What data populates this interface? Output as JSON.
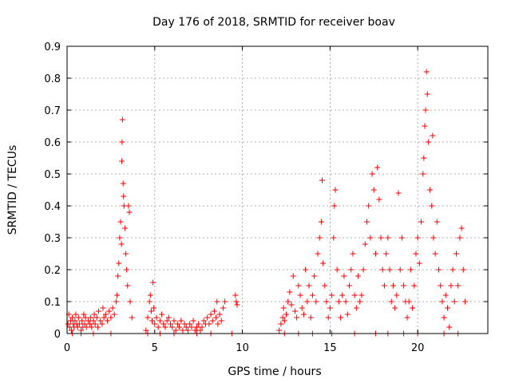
{
  "chart_data": {
    "type": "scatter",
    "title": "Day 176 of 2018, SRMTID for receiver boav",
    "xlabel": "GPS time / hours",
    "ylabel": "SRMTID / TECUs",
    "xlim": [
      0,
      24
    ],
    "ylim": [
      0,
      0.9
    ],
    "xticks": [
      0,
      5,
      10,
      15,
      20
    ],
    "yticks": [
      0,
      0.1,
      0.2,
      0.3,
      0.4,
      0.5,
      0.6,
      0.7,
      0.8,
      0.9
    ],
    "xtick_labels": [
      "0",
      "5",
      "10",
      "15",
      "20"
    ],
    "ytick_labels": [
      "0",
      "0.1",
      "0.2",
      "0.3",
      "0.4",
      "0.5",
      "0.6",
      "0.7",
      "0.8",
      "0.9"
    ],
    "grid": true,
    "marker": "plus",
    "color": "#ff0000",
    "series": [
      {
        "name": "SRMTID",
        "points": [
          [
            0.05,
            0.03
          ],
          [
            0.1,
            0.06
          ],
          [
            0.15,
            0.02
          ],
          [
            0.2,
            0.04
          ],
          [
            0.25,
            0.01
          ],
          [
            0.3,
            0.05
          ],
          [
            0.35,
            0.03
          ],
          [
            0.4,
            0.02
          ],
          [
            0.45,
            0.04
          ],
          [
            0.5,
            0.06
          ],
          [
            0.55,
            0.03
          ],
          [
            0.6,
            0.02
          ],
          [
            0.65,
            0.05
          ],
          [
            0.7,
            0.03
          ],
          [
            0.8,
            0.01
          ],
          [
            0.85,
            0.04
          ],
          [
            0.9,
            0.02
          ],
          [
            0.95,
            0.06
          ],
          [
            1.0,
            0.03
          ],
          [
            1.05,
            0.05
          ],
          [
            1.1,
            0.02
          ],
          [
            1.2,
            0.04
          ],
          [
            1.3,
            0.03
          ],
          [
            1.35,
            0.05
          ],
          [
            1.4,
            0.02
          ],
          [
            1.5,
            0.04
          ],
          [
            1.55,
            0.06
          ],
          [
            1.6,
            0.03
          ],
          [
            1.7,
            0.05
          ],
          [
            1.75,
            0.02
          ],
          [
            1.8,
            0.07
          ],
          [
            1.9,
            0.04
          ],
          [
            2.0,
            0.03
          ],
          [
            2.05,
            0.08
          ],
          [
            2.1,
            0.05
          ],
          [
            2.2,
            0.06
          ],
          [
            2.3,
            0.04
          ],
          [
            2.4,
            0.07
          ],
          [
            2.5,
            0.05
          ],
          [
            2.6,
            0.08
          ],
          [
            2.7,
            0.06
          ],
          [
            2.8,
            0.1
          ],
          [
            2.85,
            0.12
          ],
          [
            2.9,
            0.18
          ],
          [
            2.95,
            0.22
          ],
          [
            3.0,
            0.3
          ],
          [
            3.05,
            0.35
          ],
          [
            3.1,
            0.28
          ],
          [
            3.12,
            0.54
          ],
          [
            3.14,
            0.6
          ],
          [
            3.16,
            0.67
          ],
          [
            3.2,
            0.47
          ],
          [
            3.22,
            0.43
          ],
          [
            3.25,
            0.4
          ],
          [
            3.3,
            0.33
          ],
          [
            3.35,
            0.25
          ],
          [
            3.4,
            0.2
          ],
          [
            3.45,
            0.15
          ],
          [
            3.5,
            0.4
          ],
          [
            3.55,
            0.38
          ],
          [
            3.6,
            0.1
          ],
          [
            3.7,
            0.05
          ],
          [
            4.5,
            0.01
          ],
          [
            4.6,
            0.05
          ],
          [
            4.7,
            0.1
          ],
          [
            4.75,
            0.12
          ],
          [
            4.8,
            0.07
          ],
          [
            4.85,
            0.04
          ],
          [
            4.9,
            0.16
          ],
          [
            4.95,
            0.08
          ],
          [
            5.0,
            0.03
          ],
          [
            5.1,
            0.05
          ],
          [
            5.2,
            0.02
          ],
          [
            5.3,
            0.04
          ],
          [
            5.4,
            0.06
          ],
          [
            5.5,
            0.03
          ],
          [
            5.6,
            0.02
          ],
          [
            5.7,
            0.04
          ],
          [
            5.8,
            0.05
          ],
          [
            5.9,
            0.03
          ],
          [
            6.0,
            0.02
          ],
          [
            6.1,
            0.04
          ],
          [
            6.2,
            0.01
          ],
          [
            6.3,
            0.03
          ],
          [
            6.4,
            0.02
          ],
          [
            6.5,
            0.04
          ],
          [
            6.6,
            0.01
          ],
          [
            6.7,
            0.03
          ],
          [
            6.8,
            0.02
          ],
          [
            6.9,
            0.01
          ],
          [
            7.0,
            0.03
          ],
          [
            7.1,
            0.02
          ],
          [
            7.2,
            0.04
          ],
          [
            7.3,
            0.01
          ],
          [
            7.4,
            0.02
          ],
          [
            7.5,
            0.03
          ],
          [
            7.6,
            0.01
          ],
          [
            7.7,
            0.02
          ],
          [
            7.8,
            0.04
          ],
          [
            7.9,
            0.03
          ],
          [
            8.0,
            0.05
          ],
          [
            8.1,
            0.03
          ],
          [
            8.2,
            0.06
          ],
          [
            8.3,
            0.04
          ],
          [
            8.4,
            0.07
          ],
          [
            8.5,
            0.05
          ],
          [
            8.55,
            0.1
          ],
          [
            8.6,
            0.03
          ],
          [
            8.7,
            0.06
          ],
          [
            8.8,
            0.04
          ],
          [
            8.9,
            0.08
          ],
          [
            9.0,
            0.1
          ],
          [
            9.6,
            0.12
          ],
          [
            9.65,
            0.1
          ],
          [
            9.7,
            0.09
          ],
          [
            12.1,
            0.01
          ],
          [
            12.2,
            0.03
          ],
          [
            12.3,
            0.05
          ],
          [
            12.35,
            0.08
          ],
          [
            12.4,
            0.04
          ],
          [
            12.5,
            0.06
          ],
          [
            12.6,
            0.1
          ],
          [
            12.7,
            0.13
          ],
          [
            12.8,
            0.09
          ],
          [
            12.9,
            0.18
          ],
          [
            13.0,
            0.07
          ],
          [
            13.1,
            0.05
          ],
          [
            13.2,
            0.15
          ],
          [
            13.3,
            0.12
          ],
          [
            13.4,
            0.08
          ],
          [
            13.5,
            0.06
          ],
          [
            13.6,
            0.2
          ],
          [
            13.7,
            0.1
          ],
          [
            13.8,
            0.15
          ],
          [
            13.9,
            0.05
          ],
          [
            14.0,
            0.12
          ],
          [
            14.1,
            0.18
          ],
          [
            14.2,
            0.1
          ],
          [
            14.3,
            0.25
          ],
          [
            14.4,
            0.3
          ],
          [
            14.5,
            0.35
          ],
          [
            14.55,
            0.48
          ],
          [
            14.6,
            0.22
          ],
          [
            14.7,
            0.15
          ],
          [
            14.8,
            0.1
          ],
          [
            14.9,
            0.05
          ],
          [
            15.0,
            0.08
          ],
          [
            15.1,
            0.12
          ],
          [
            15.2,
            0.3
          ],
          [
            15.25,
            0.4
          ],
          [
            15.3,
            0.45
          ],
          [
            15.4,
            0.2
          ],
          [
            15.5,
            0.1
          ],
          [
            15.6,
            0.05
          ],
          [
            15.7,
            0.12
          ],
          [
            15.8,
            0.18
          ],
          [
            15.9,
            0.1
          ],
          [
            16.0,
            0.06
          ],
          [
            16.1,
            0.15
          ],
          [
            16.2,
            0.2
          ],
          [
            16.3,
            0.25
          ],
          [
            16.4,
            0.12
          ],
          [
            16.5,
            0.08
          ],
          [
            16.6,
            0.18
          ],
          [
            16.7,
            0.1
          ],
          [
            16.8,
            0.12
          ],
          [
            16.9,
            0.2
          ],
          [
            17.0,
            0.28
          ],
          [
            17.1,
            0.35
          ],
          [
            17.2,
            0.4
          ],
          [
            17.3,
            0.3
          ],
          [
            17.4,
            0.5
          ],
          [
            17.5,
            0.45
          ],
          [
            17.6,
            0.25
          ],
          [
            17.7,
            0.52
          ],
          [
            17.8,
            0.42
          ],
          [
            17.9,
            0.3
          ],
          [
            18.0,
            0.2
          ],
          [
            18.1,
            0.15
          ],
          [
            18.2,
            0.25
          ],
          [
            18.3,
            0.3
          ],
          [
            18.4,
            0.2
          ],
          [
            18.5,
            0.1
          ],
          [
            18.6,
            0.15
          ],
          [
            18.7,
            0.08
          ],
          [
            18.8,
            0.12
          ],
          [
            18.9,
            0.44
          ],
          [
            19.0,
            0.2
          ],
          [
            19.1,
            0.3
          ],
          [
            19.2,
            0.15
          ],
          [
            19.3,
            0.1
          ],
          [
            19.4,
            0.05
          ],
          [
            19.5,
            0.1
          ],
          [
            19.6,
            0.2
          ],
          [
            19.7,
            0.08
          ],
          [
            19.8,
            0.15
          ],
          [
            19.9,
            0.25
          ],
          [
            20.0,
            0.3
          ],
          [
            20.1,
            0.22
          ],
          [
            20.2,
            0.35
          ],
          [
            20.3,
            0.5
          ],
          [
            20.35,
            0.55
          ],
          [
            20.4,
            0.65
          ],
          [
            20.45,
            0.7
          ],
          [
            20.5,
            0.82
          ],
          [
            20.55,
            0.75
          ],
          [
            20.6,
            0.6
          ],
          [
            20.7,
            0.45
          ],
          [
            20.8,
            0.4
          ],
          [
            20.85,
            0.62
          ],
          [
            20.9,
            0.3
          ],
          [
            21.0,
            0.25
          ],
          [
            21.1,
            0.35
          ],
          [
            21.2,
            0.2
          ],
          [
            21.3,
            0.15
          ],
          [
            21.4,
            0.1
          ],
          [
            21.5,
            0.05
          ],
          [
            21.6,
            0.12
          ],
          [
            21.7,
            0.08
          ],
          [
            21.8,
            0.02
          ],
          [
            21.9,
            0.15
          ],
          [
            22.0,
            0.2
          ],
          [
            22.1,
            0.1
          ],
          [
            22.2,
            0.25
          ],
          [
            22.3,
            0.15
          ],
          [
            22.4,
            0.3
          ],
          [
            22.5,
            0.33
          ],
          [
            22.6,
            0.2
          ],
          [
            22.7,
            0.1
          ],
          [
            0.3,
            0
          ],
          [
            0.8,
            0
          ],
          [
            1.5,
            0
          ],
          [
            2.5,
            0
          ],
          [
            4.6,
            0
          ],
          [
            5.3,
            0
          ],
          [
            6.1,
            0
          ],
          [
            7.4,
            0
          ],
          [
            8.2,
            0
          ],
          [
            9.4,
            0
          ],
          [
            12.4,
            0
          ],
          [
            13.2,
            0
          ],
          [
            14.0,
            0
          ],
          [
            15.1,
            0
          ],
          [
            16.4,
            0
          ],
          [
            17.6,
            0
          ],
          [
            18.3,
            0
          ],
          [
            19.2,
            0
          ],
          [
            20.0,
            0
          ],
          [
            21.5,
            0
          ],
          [
            22.3,
            0
          ]
        ]
      }
    ]
  }
}
